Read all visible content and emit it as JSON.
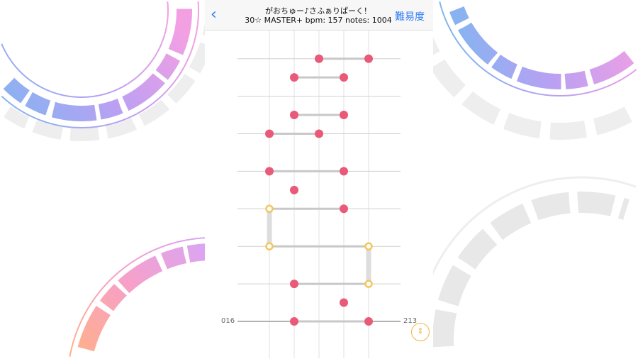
{
  "header": {
    "back_icon": "chevron-left-icon",
    "song_title": "がおちゅー♪さふぁりぱーく！",
    "info": "30☆ MASTER+ bpm: 157 notes: 1004",
    "difficulty_button": "難易度"
  },
  "chart": {
    "measure_left": "016",
    "measure_right": "213",
    "lanes": 5,
    "colors": {
      "tap": "#e85a78",
      "hold": "#f2c65a",
      "connector": "#c8c8c8",
      "accent": "#2f7bf6"
    },
    "notes": [
      {
        "t": 14,
        "lane": 2,
        "type": "tap"
      },
      {
        "t": 14,
        "lane": 4,
        "type": "tap"
      },
      {
        "t": 13,
        "lane": 1,
        "type": "tap"
      },
      {
        "t": 13,
        "lane": 3,
        "type": "tap"
      },
      {
        "t": 11,
        "lane": 1,
        "type": "tap"
      },
      {
        "t": 11,
        "lane": 3,
        "type": "tap"
      },
      {
        "t": 10,
        "lane": 0,
        "type": "tap"
      },
      {
        "t": 10,
        "lane": 2,
        "type": "tap"
      },
      {
        "t": 8,
        "lane": 0,
        "type": "tap"
      },
      {
        "t": 8,
        "lane": 3,
        "type": "tap"
      },
      {
        "t": 7,
        "lane": 1,
        "type": "tap"
      },
      {
        "t": 6,
        "lane": 0,
        "type": "hold"
      },
      {
        "t": 6,
        "lane": 3,
        "type": "tap"
      },
      {
        "t": 4,
        "lane": 0,
        "type": "hold"
      },
      {
        "t": 4,
        "lane": 4,
        "type": "hold"
      },
      {
        "t": 2,
        "lane": 1,
        "type": "tap"
      },
      {
        "t": 2,
        "lane": 4,
        "type": "hold"
      },
      {
        "t": 1,
        "lane": 3,
        "type": "tap"
      },
      {
        "t": 0,
        "lane": 1,
        "type": "tap"
      },
      {
        "t": 0,
        "lane": 4,
        "type": "tap"
      }
    ],
    "sync_lines": [
      [
        14,
        2,
        4
      ],
      [
        13,
        1,
        3
      ],
      [
        11,
        1,
        3
      ],
      [
        10,
        0,
        2
      ],
      [
        8,
        0,
        3
      ],
      [
        6,
        0,
        3
      ],
      [
        4,
        0,
        4
      ],
      [
        2,
        1,
        4
      ],
      [
        0,
        1,
        4
      ]
    ],
    "holds": [
      [
        0,
        4,
        6
      ],
      [
        4,
        2,
        4
      ]
    ]
  },
  "scroll_button_icon": "up-down-arrows-icon"
}
